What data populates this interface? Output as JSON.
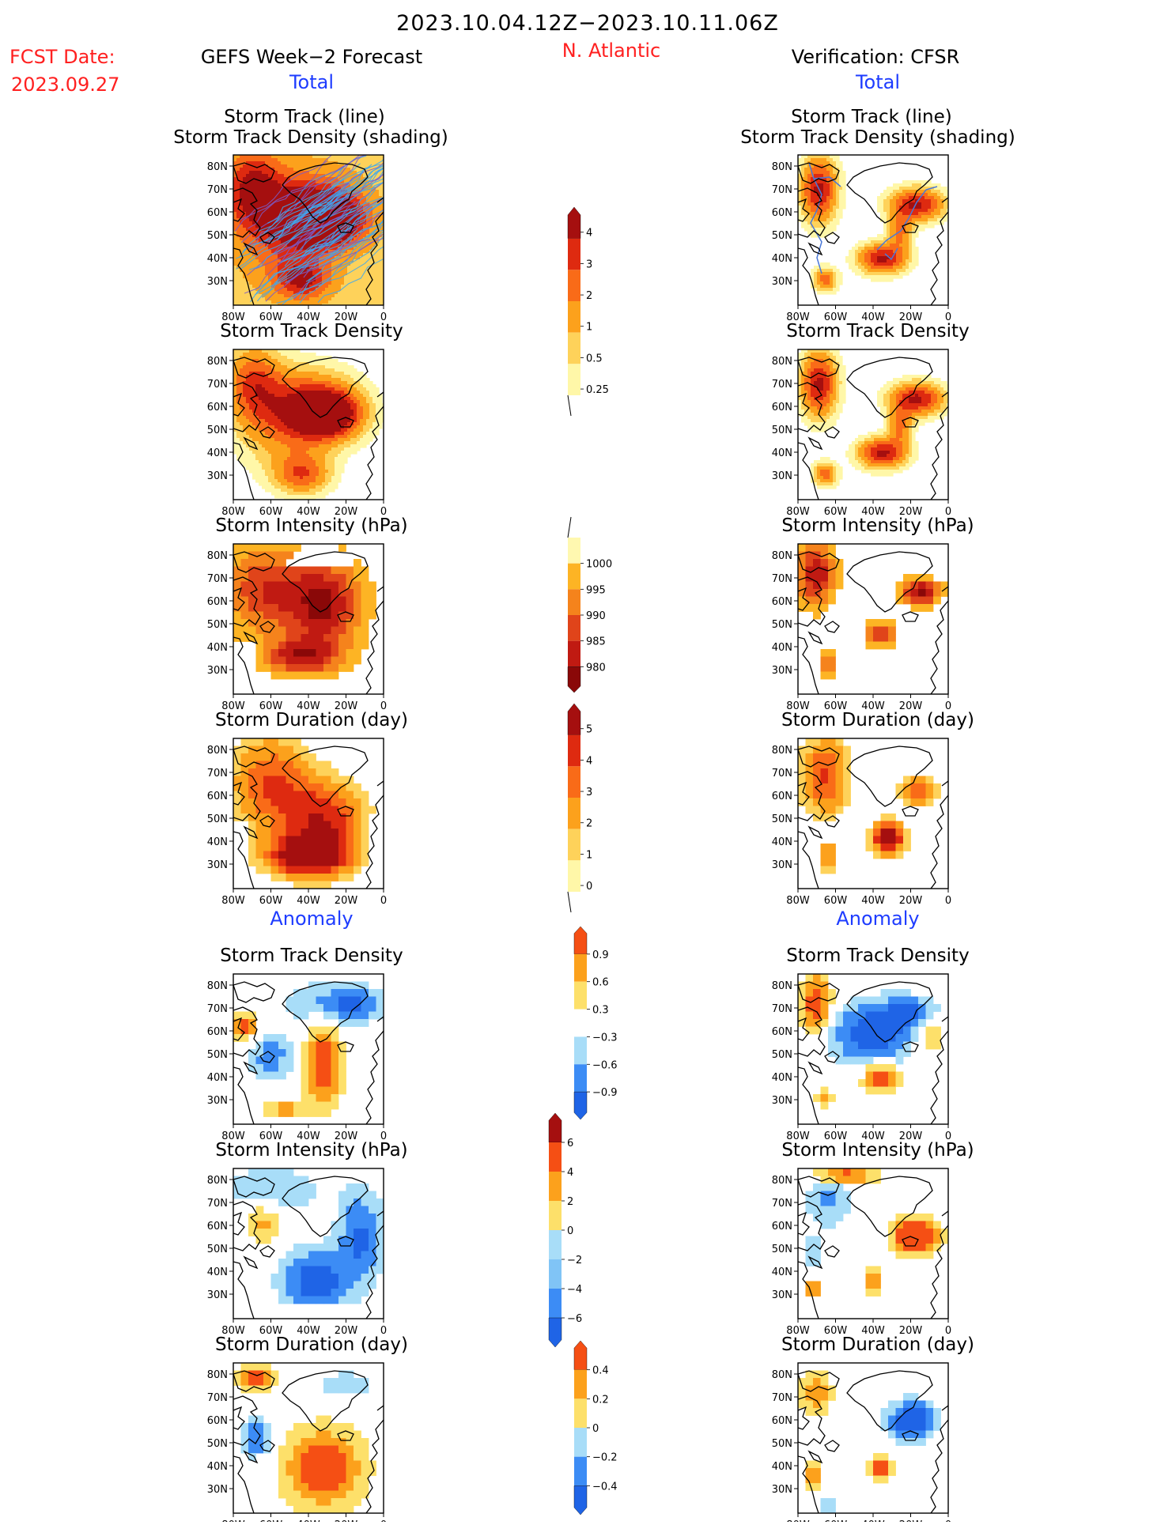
{
  "header": {
    "date_range": "2023.10.04.12Z−2023.10.11.06Z",
    "fcst_label": "FCST Date:",
    "fcst_date": "2023.09.27",
    "region": "N. Atlantic",
    "left_title": "GEFS Week−2 Forecast",
    "right_title": "Verification: CFSR"
  },
  "sections": {
    "total": "Total",
    "anomaly": "Anomaly"
  },
  "panel_titles": {
    "track_line": "Storm Track (line)",
    "track_shading": "Storm Track Density (shading)",
    "density": "Storm Track Density",
    "intensity": "Storm Intensity (hPa)",
    "duration": "Storm Duration (day)"
  },
  "axes": {
    "lat_ticks": [
      "80N",
      "70N",
      "60N",
      "50N",
      "40N",
      "30N"
    ],
    "lon_ticks": [
      "80W",
      "60W",
      "40W",
      "20W",
      "0"
    ]
  },
  "colorbars": [
    {
      "id": "density_total",
      "labels": [
        "4",
        "3",
        "2",
        "1",
        "0.5",
        "0.25"
      ]
    },
    {
      "id": "intensity_total",
      "labels": [
        "1000",
        "995",
        "990",
        "985",
        "980"
      ]
    },
    {
      "id": "duration_total",
      "labels": [
        "5",
        "4",
        "3",
        "2",
        "1",
        "0"
      ]
    },
    {
      "id": "density_anom",
      "labels": [
        "0.9",
        "0.6",
        "0.3",
        "−0.3",
        "−0.6",
        "−0.9"
      ]
    },
    {
      "id": "intensity_anom",
      "labels": [
        "6",
        "4",
        "2",
        "0",
        "−2",
        "−4",
        "−6"
      ]
    },
    {
      "id": "duration_anom",
      "labels": [
        "0.4",
        "0.2",
        "0",
        "−0.2",
        "−0.4"
      ]
    }
  ],
  "colors": {
    "red_text": "#ff2020",
    "blue_text": "#1e3cff",
    "warm_scale": [
      "#fff7a8",
      "#fed25a",
      "#fca11c",
      "#f96b18",
      "#de2a10",
      "#a50f0f"
    ],
    "intensity_scale": [
      "#fff8b0",
      "#fdb424",
      "#f5831c",
      "#e0441a",
      "#c01a12",
      "#8a0808"
    ],
    "anom_scale": [
      "#1f64e6",
      "#3c8cf5",
      "#a8ddf8",
      "#ffffff",
      "#fde06a",
      "#fca11c",
      "#f54f14"
    ]
  }
}
